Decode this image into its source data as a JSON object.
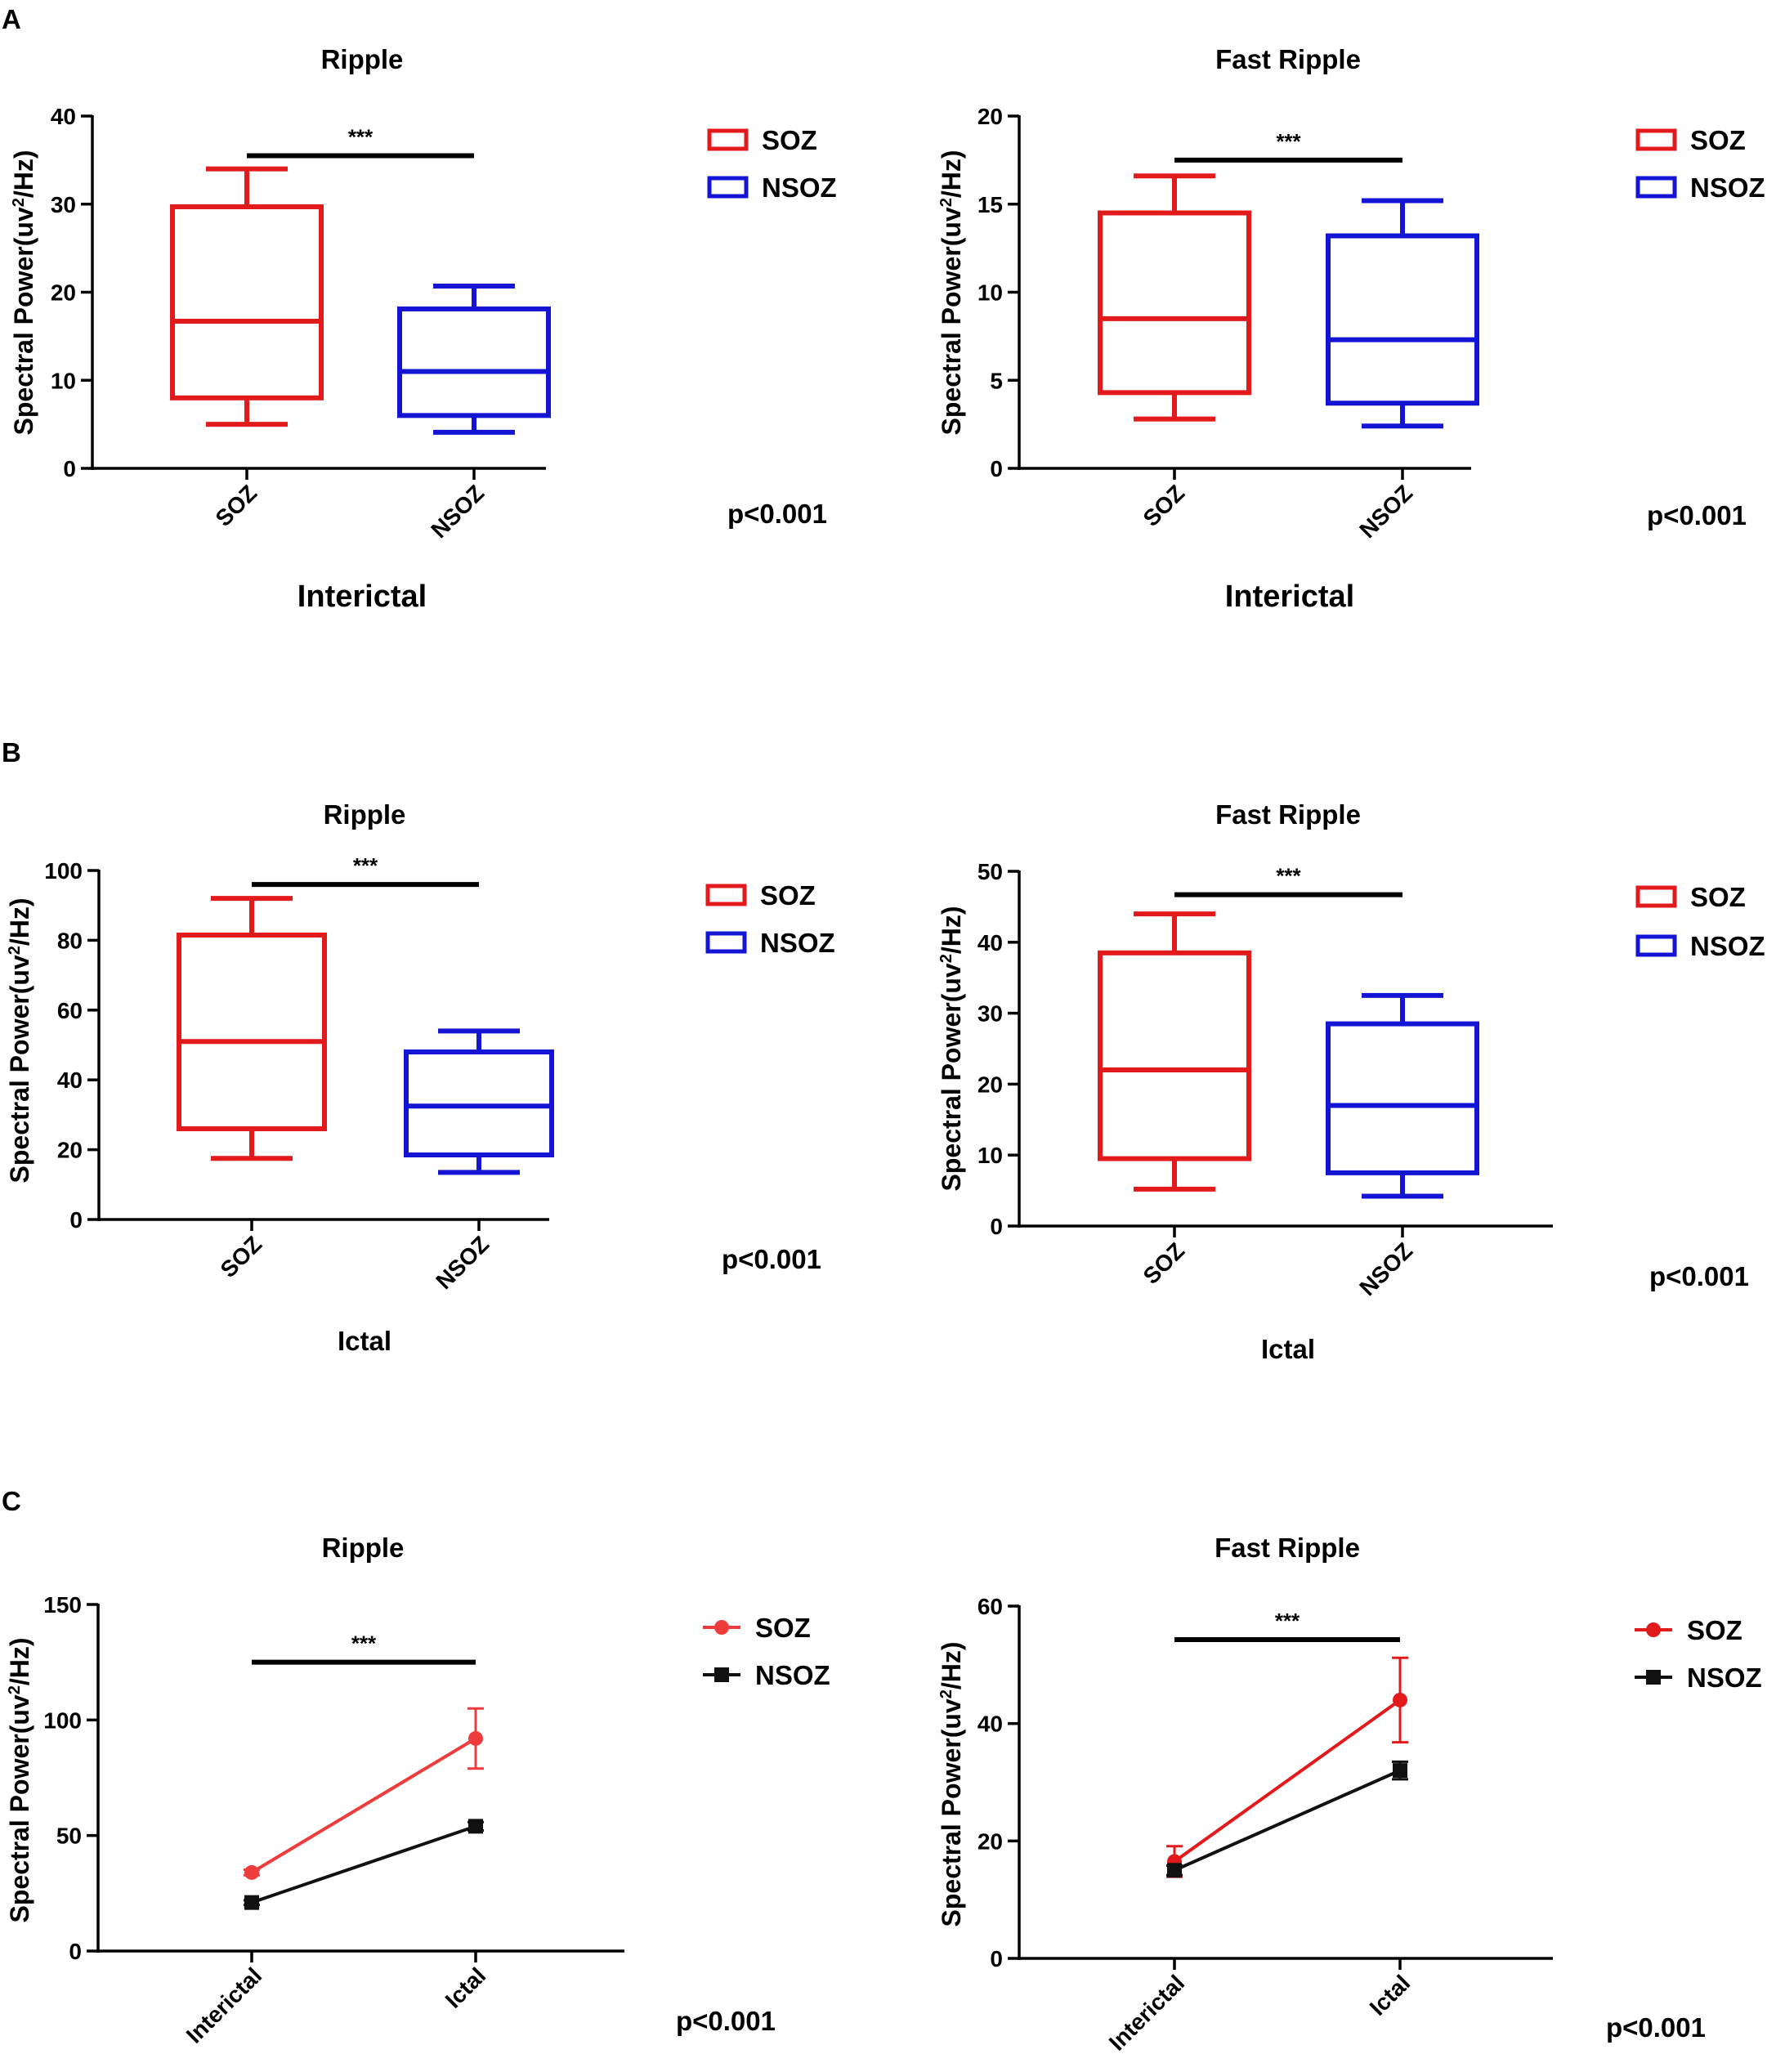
{
  "panels": [
    {
      "letter": "A"
    },
    {
      "letter": "B"
    },
    {
      "letter": "C"
    }
  ],
  "chart_data": [
    {
      "id": "A-ripple",
      "panel": "A",
      "type": "box",
      "title": "Ripple",
      "xlabel": "Interictal",
      "ylabel": "Spectral Power(uv2/Hz)",
      "ylabel_parts": [
        "Spectral Power(uv",
        "2",
        "/Hz)"
      ],
      "ylim": [
        0,
        40
      ],
      "yticks": [
        0,
        10,
        20,
        30,
        40
      ],
      "categories": [
        "SOZ",
        "NSOZ"
      ],
      "boxes": [
        {
          "name": "SOZ",
          "color": "#e31a1c",
          "min": 5,
          "q1": 8,
          "median": 16.7,
          "q3": 29.7,
          "max": 34
        },
        {
          "name": "NSOZ",
          "color": "#1414d4",
          "min": 4.1,
          "q1": 6,
          "median": 11,
          "q3": 18.1,
          "max": 20.7
        }
      ],
      "significance": {
        "label": "***",
        "y": 35.5
      },
      "legend": [
        {
          "label": "SOZ",
          "color": "#e31a1c"
        },
        {
          "label": "NSOZ",
          "color": "#1414d4"
        }
      ],
      "p_value": "p<0.001"
    },
    {
      "id": "A-fast-ripple",
      "panel": "A",
      "type": "box",
      "title": "Fast Ripple",
      "xlabel": "Interictal",
      "ylabel": "Spectral Power(uv2/Hz)",
      "ylabel_parts": [
        "Spectral Power(uv",
        "2",
        "/Hz)"
      ],
      "ylim": [
        0,
        20
      ],
      "yticks": [
        0,
        5,
        10,
        15,
        20
      ],
      "categories": [
        "SOZ",
        "NSOZ"
      ],
      "boxes": [
        {
          "name": "SOZ",
          "color": "#e31a1c",
          "min": 2.8,
          "q1": 4.3,
          "median": 8.5,
          "q3": 14.5,
          "max": 16.6
        },
        {
          "name": "NSOZ",
          "color": "#1414d4",
          "min": 2.4,
          "q1": 3.7,
          "median": 7.3,
          "q3": 13.2,
          "max": 15.2
        }
      ],
      "significance": {
        "label": "***",
        "y": 17.5
      },
      "legend": [
        {
          "label": "SOZ",
          "color": "#e31a1c"
        },
        {
          "label": "NSOZ",
          "color": "#1414d4"
        }
      ],
      "p_value": "p<0.001"
    },
    {
      "id": "B-ripple",
      "panel": "B",
      "type": "box",
      "title": "Ripple",
      "xlabel": "Ictal",
      "ylabel": "Spectral Power(uv2/Hz)",
      "ylabel_parts": [
        "Spectral Power(uv",
        "2",
        "/Hz)"
      ],
      "ylim": [
        0,
        100
      ],
      "yticks": [
        0,
        20,
        40,
        60,
        80,
        100
      ],
      "categories": [
        "SOZ",
        "NSOZ"
      ],
      "boxes": [
        {
          "name": "SOZ",
          "color": "#e31a1c",
          "min": 17.5,
          "q1": 26,
          "median": 51,
          "q3": 81.5,
          "max": 92
        },
        {
          "name": "NSOZ",
          "color": "#1414d4",
          "min": 13.5,
          "q1": 18.5,
          "median": 32.5,
          "q3": 48,
          "max": 54
        }
      ],
      "significance": {
        "label": "***",
        "y": 96
      },
      "legend": [
        {
          "label": "SOZ",
          "color": "#e31a1c"
        },
        {
          "label": "NSOZ",
          "color": "#1414d4"
        }
      ],
      "p_value": "p<0.001"
    },
    {
      "id": "B-fast-ripple",
      "panel": "B",
      "type": "box",
      "title": "Fast Ripple",
      "xlabel": "Ictal",
      "ylabel": "Spectral Power(uv2/Hz)",
      "ylabel_parts": [
        "Spectral Power(uv",
        "2",
        "/Hz)"
      ],
      "ylim": [
        0,
        50
      ],
      "yticks": [
        0,
        10,
        20,
        30,
        40,
        50
      ],
      "categories": [
        "SOZ",
        "NSOZ"
      ],
      "boxes": [
        {
          "name": "SOZ",
          "color": "#e31a1c",
          "min": 5.2,
          "q1": 9.5,
          "median": 22,
          "q3": 38.5,
          "max": 44
        },
        {
          "name": "NSOZ",
          "color": "#1414d4",
          "min": 4.2,
          "q1": 7.5,
          "median": 17,
          "q3": 28.5,
          "max": 32.5
        }
      ],
      "significance": {
        "label": "***",
        "y": 46.7
      },
      "legend": [
        {
          "label": "SOZ",
          "color": "#e31a1c"
        },
        {
          "label": "NSOZ",
          "color": "#1414d4"
        }
      ],
      "p_value": "p<0.001"
    },
    {
      "id": "C-ripple",
      "panel": "C",
      "type": "line",
      "title": "Ripple",
      "xlabel": "",
      "ylabel": "Spectral Power(uv2/Hz)",
      "ylabel_parts": [
        "Spectral Power(uv",
        "2",
        "/Hz)"
      ],
      "ylim": [
        0,
        150
      ],
      "yticks": [
        0,
        50,
        100,
        150
      ],
      "categories": [
        "Interictal",
        "Ictal"
      ],
      "series": [
        {
          "name": "SOZ",
          "color": "#ee3b3b",
          "marker": "circle",
          "values": [
            34,
            92
          ],
          "err": [
            1.2,
            13
          ]
        },
        {
          "name": "NSOZ",
          "color": "#111111",
          "marker": "square",
          "values": [
            21,
            54
          ],
          "err": [
            1,
            1.8
          ]
        }
      ],
      "significance": {
        "label": "***",
        "y": 125
      },
      "legend": [
        {
          "label": "SOZ",
          "color": "#ee3b3b",
          "marker": "circle"
        },
        {
          "label": "NSOZ",
          "color": "#111111",
          "marker": "square"
        }
      ],
      "p_value": "p<0.001"
    },
    {
      "id": "C-fast-ripple",
      "panel": "C",
      "type": "line",
      "title": "Fast Ripple",
      "xlabel": "",
      "ylabel": "Spectral Power(uv2/Hz)",
      "ylabel_parts": [
        "Spectral Power(uv",
        "2",
        "/Hz)"
      ],
      "ylim": [
        0,
        60
      ],
      "yticks": [
        0,
        20,
        40,
        60
      ],
      "categories": [
        "Interictal",
        "Ictal"
      ],
      "series": [
        {
          "name": "SOZ",
          "color": "#e31a1c",
          "marker": "circle",
          "values": [
            16.5,
            44
          ],
          "err": [
            2.6,
            7.2
          ]
        },
        {
          "name": "NSOZ",
          "color": "#111111",
          "marker": "square",
          "values": [
            15,
            32
          ],
          "err": [
            0.8,
            1.5
          ]
        }
      ],
      "significance": {
        "label": "***",
        "y": 54.3
      },
      "legend": [
        {
          "label": "SOZ",
          "color": "#e31a1c",
          "marker": "circle"
        },
        {
          "label": "NSOZ",
          "color": "#111111",
          "marker": "square"
        }
      ],
      "p_value": "p<0.001"
    }
  ]
}
